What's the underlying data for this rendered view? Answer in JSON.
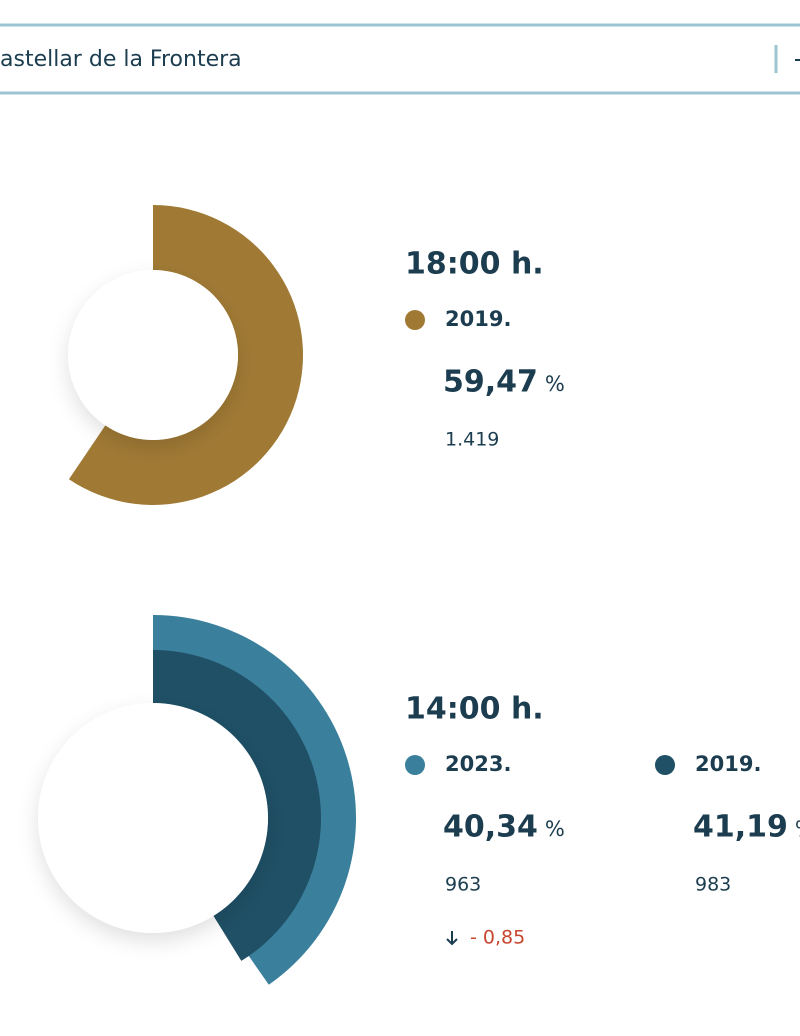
{
  "search": {
    "text": "astellar de la Frontera"
  },
  "sections": [
    {
      "time": "18:00 h.",
      "entries": [
        {
          "year": "2019.",
          "color": "#a07a35",
          "percent": {
            "value": 59.47,
            "label": "59,47"
          },
          "unit": "%",
          "count": "1.419"
        }
      ]
    },
    {
      "time": "14:00 h.",
      "entries": [
        {
          "year": "2023.",
          "color": "#3a7f9c",
          "percent": {
            "value": 40.34,
            "label": "40,34"
          },
          "unit": "%",
          "count": "963"
        },
        {
          "year": "2019.",
          "color": "#1f5066",
          "percent": {
            "value": 41.19,
            "label": "41,19"
          },
          "unit": "%",
          "count": "983"
        }
      ],
      "difference": "- 0,85"
    }
  ]
}
